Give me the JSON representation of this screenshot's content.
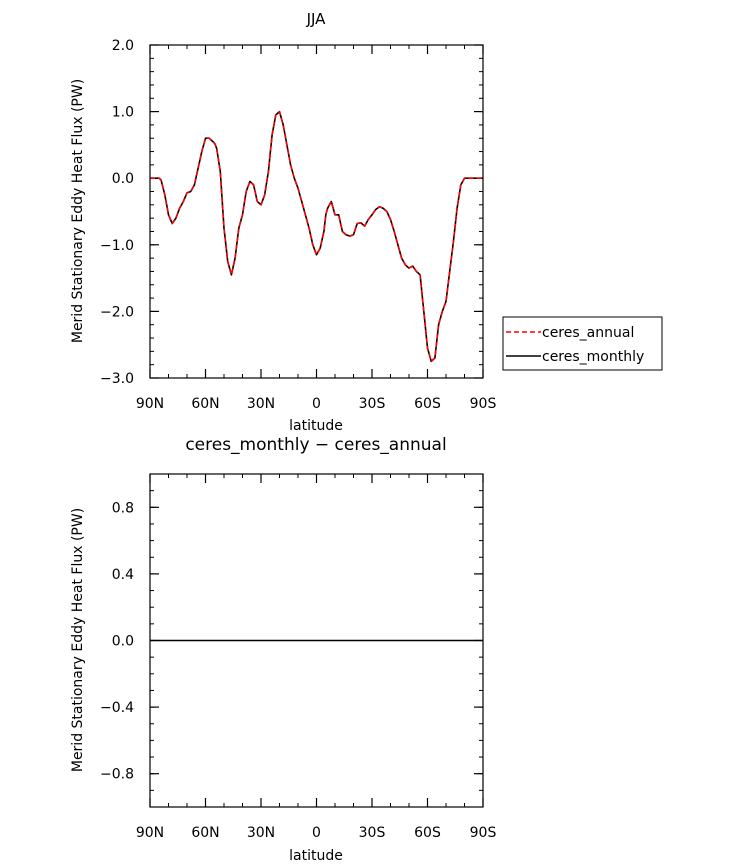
{
  "chart_data": [
    {
      "type": "line",
      "title": "JJA",
      "xlabel": "latitude",
      "ylabel": "Merid Stationary Eddy Heat Flux (PW)",
      "xlim": [
        90,
        -90
      ],
      "ylim": [
        -3.0,
        2.0
      ],
      "x_ticks": [
        90,
        60,
        30,
        0,
        -30,
        -60,
        -90
      ],
      "x_tick_labels": [
        "90N",
        "60N",
        "30N",
        "0",
        "30S",
        "60S",
        "90S"
      ],
      "y_ticks": [
        2.0,
        1.0,
        0.0,
        -1.0,
        -2.0,
        -3.0
      ],
      "y_tick_labels": [
        "2.0",
        "1.0",
        "0.0",
        "−1.0",
        "−2.0",
        "−3.0"
      ],
      "legend_position": "right, outside plot",
      "series": [
        {
          "name": "ceres_annual",
          "color": "#ff0000",
          "dash": "dashed",
          "x": [
            90,
            87,
            85,
            84,
            82,
            80,
            78,
            76,
            74,
            72,
            70,
            68,
            66,
            64,
            62,
            60,
            58,
            56,
            55,
            54,
            52,
            50,
            48,
            46,
            44,
            42,
            40,
            38,
            36,
            34,
            32,
            30,
            28,
            26,
            24,
            22,
            20,
            18,
            16,
            14,
            12,
            10,
            8,
            6,
            4,
            2,
            0,
            -2,
            -4,
            -5,
            -6,
            -8,
            -10,
            -12,
            -14,
            -16,
            -18,
            -20,
            -22,
            -24,
            -26,
            -28,
            -30,
            -32,
            -34,
            -36,
            -38,
            -40,
            -42,
            -44,
            -46,
            -48,
            -50,
            -52,
            -54,
            -56,
            -58,
            -60,
            -62,
            -64,
            -66,
            -68,
            -70,
            -72,
            -74,
            -76,
            -78,
            -80,
            -82,
            -84,
            -86,
            -88,
            -90
          ],
          "y": [
            0.0,
            0.0,
            0.0,
            -0.03,
            -0.25,
            -0.55,
            -0.68,
            -0.6,
            -0.45,
            -0.35,
            -0.22,
            -0.2,
            -0.1,
            0.15,
            0.4,
            0.6,
            0.6,
            0.55,
            0.52,
            0.45,
            0.1,
            -0.75,
            -1.25,
            -1.45,
            -1.2,
            -0.75,
            -0.55,
            -0.2,
            -0.05,
            -0.1,
            -0.35,
            -0.4,
            -0.25,
            0.1,
            0.65,
            0.95,
            1.0,
            0.8,
            0.5,
            0.2,
            0.0,
            -0.15,
            -0.35,
            -0.55,
            -0.75,
            -1.0,
            -1.15,
            -1.05,
            -0.8,
            -0.55,
            -0.45,
            -0.35,
            -0.55,
            -0.55,
            -0.8,
            -0.85,
            -0.87,
            -0.85,
            -0.68,
            -0.67,
            -0.72,
            -0.62,
            -0.55,
            -0.47,
            -0.43,
            -0.45,
            -0.5,
            -0.62,
            -0.8,
            -1.0,
            -1.2,
            -1.3,
            -1.35,
            -1.32,
            -1.4,
            -1.45,
            -2.0,
            -2.55,
            -2.75,
            -2.7,
            -2.2,
            -2.0,
            -1.85,
            -1.4,
            -0.95,
            -0.45,
            -0.1,
            0.0,
            0.0,
            0.0,
            0.0,
            0.0,
            0.0
          ]
        },
        {
          "name": "ceres_monthly",
          "color": "#000000",
          "dash": "solid",
          "x": [
            90,
            87,
            85,
            84,
            82,
            80,
            78,
            76,
            74,
            72,
            70,
            68,
            66,
            64,
            62,
            60,
            58,
            56,
            55,
            54,
            52,
            50,
            48,
            46,
            44,
            42,
            40,
            38,
            36,
            34,
            32,
            30,
            28,
            26,
            24,
            22,
            20,
            18,
            16,
            14,
            12,
            10,
            8,
            6,
            4,
            2,
            0,
            -2,
            -4,
            -5,
            -6,
            -8,
            -10,
            -12,
            -14,
            -16,
            -18,
            -20,
            -22,
            -24,
            -26,
            -28,
            -30,
            -32,
            -34,
            -36,
            -38,
            -40,
            -42,
            -44,
            -46,
            -48,
            -50,
            -52,
            -54,
            -56,
            -58,
            -60,
            -62,
            -64,
            -66,
            -68,
            -70,
            -72,
            -74,
            -76,
            -78,
            -80,
            -82,
            -84,
            -86,
            -88,
            -90
          ],
          "y": [
            0.0,
            0.0,
            0.0,
            -0.03,
            -0.25,
            -0.55,
            -0.68,
            -0.6,
            -0.45,
            -0.35,
            -0.22,
            -0.2,
            -0.1,
            0.15,
            0.4,
            0.6,
            0.6,
            0.55,
            0.52,
            0.45,
            0.1,
            -0.75,
            -1.25,
            -1.45,
            -1.2,
            -0.75,
            -0.55,
            -0.2,
            -0.05,
            -0.1,
            -0.35,
            -0.4,
            -0.25,
            0.1,
            0.65,
            0.95,
            1.0,
            0.8,
            0.5,
            0.2,
            0.0,
            -0.15,
            -0.35,
            -0.55,
            -0.75,
            -1.0,
            -1.15,
            -1.05,
            -0.8,
            -0.55,
            -0.45,
            -0.35,
            -0.55,
            -0.55,
            -0.8,
            -0.85,
            -0.87,
            -0.85,
            -0.68,
            -0.67,
            -0.72,
            -0.62,
            -0.55,
            -0.47,
            -0.43,
            -0.45,
            -0.5,
            -0.62,
            -0.8,
            -1.0,
            -1.2,
            -1.3,
            -1.35,
            -1.32,
            -1.4,
            -1.45,
            -2.0,
            -2.55,
            -2.75,
            -2.7,
            -2.2,
            -2.0,
            -1.85,
            -1.4,
            -0.95,
            -0.45,
            -0.1,
            0.0,
            0.0,
            0.0,
            0.0,
            0.0,
            0.0
          ]
        }
      ]
    },
    {
      "type": "line",
      "title": "ceres_monthly − ceres_annual",
      "xlabel": "latitude",
      "ylabel": "Merid Stationary Eddy Heat Flux (PW)",
      "xlim": [
        90,
        -90
      ],
      "ylim": [
        -1.0,
        1.0
      ],
      "x_ticks": [
        90,
        60,
        30,
        0,
        -30,
        -60,
        -90
      ],
      "x_tick_labels": [
        "90N",
        "60N",
        "30N",
        "0",
        "30S",
        "60S",
        "90S"
      ],
      "y_ticks": [
        0.8,
        0.4,
        0.0,
        -0.4,
        -0.8
      ],
      "y_tick_labels": [
        "0.8",
        "0.4",
        "0.0",
        "−0.4",
        "−0.8"
      ],
      "series": [
        {
          "color": "#000000",
          "dash": "solid",
          "x": [
            90,
            -90
          ],
          "y": [
            0.0,
            0.0
          ]
        }
      ]
    }
  ]
}
